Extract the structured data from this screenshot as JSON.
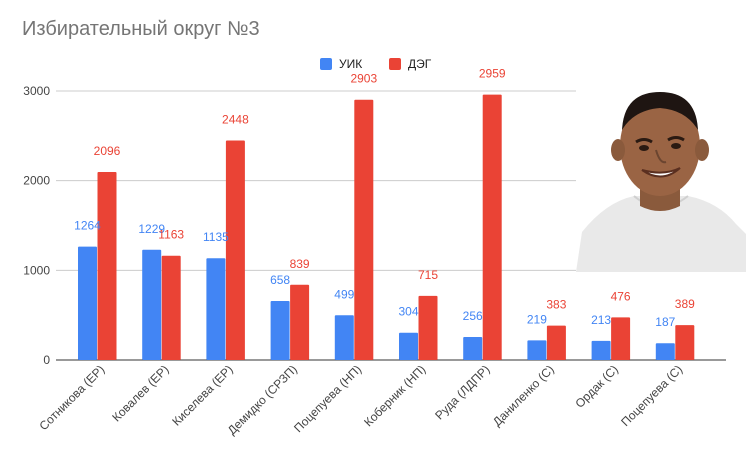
{
  "chart_data": {
    "type": "bar",
    "title": "Избирательный округ №3",
    "categories": [
      "Сотникова (ЕР)",
      "Ковалев (ЕР)",
      "Киселева (ЕР)",
      "Демидко (СРЗП)",
      "Поцепуева (НП)",
      "Коберник (НП)",
      "Руда (ЛДПР)",
      "Даниленко (С)",
      "Ордак (С)",
      "Поцепуева (С)"
    ],
    "series": [
      {
        "name": "УИК",
        "color": "#4285f4",
        "values": [
          1264,
          1229,
          1135,
          658,
          499,
          304,
          256,
          219,
          213,
          187
        ]
      },
      {
        "name": "ДЭГ",
        "color": "#ea4335",
        "values": [
          2096,
          1163,
          2448,
          839,
          2903,
          715,
          2959,
          383,
          476,
          389
        ]
      }
    ],
    "yticks": [
      "0",
      "1000",
      "2000",
      "3000"
    ],
    "ylim": [
      0,
      3000
    ],
    "grid": true,
    "legend_position": "top-center",
    "xlabel": "",
    "ylabel": ""
  },
  "overlay": {
    "image": "man-grimacing-photo"
  }
}
